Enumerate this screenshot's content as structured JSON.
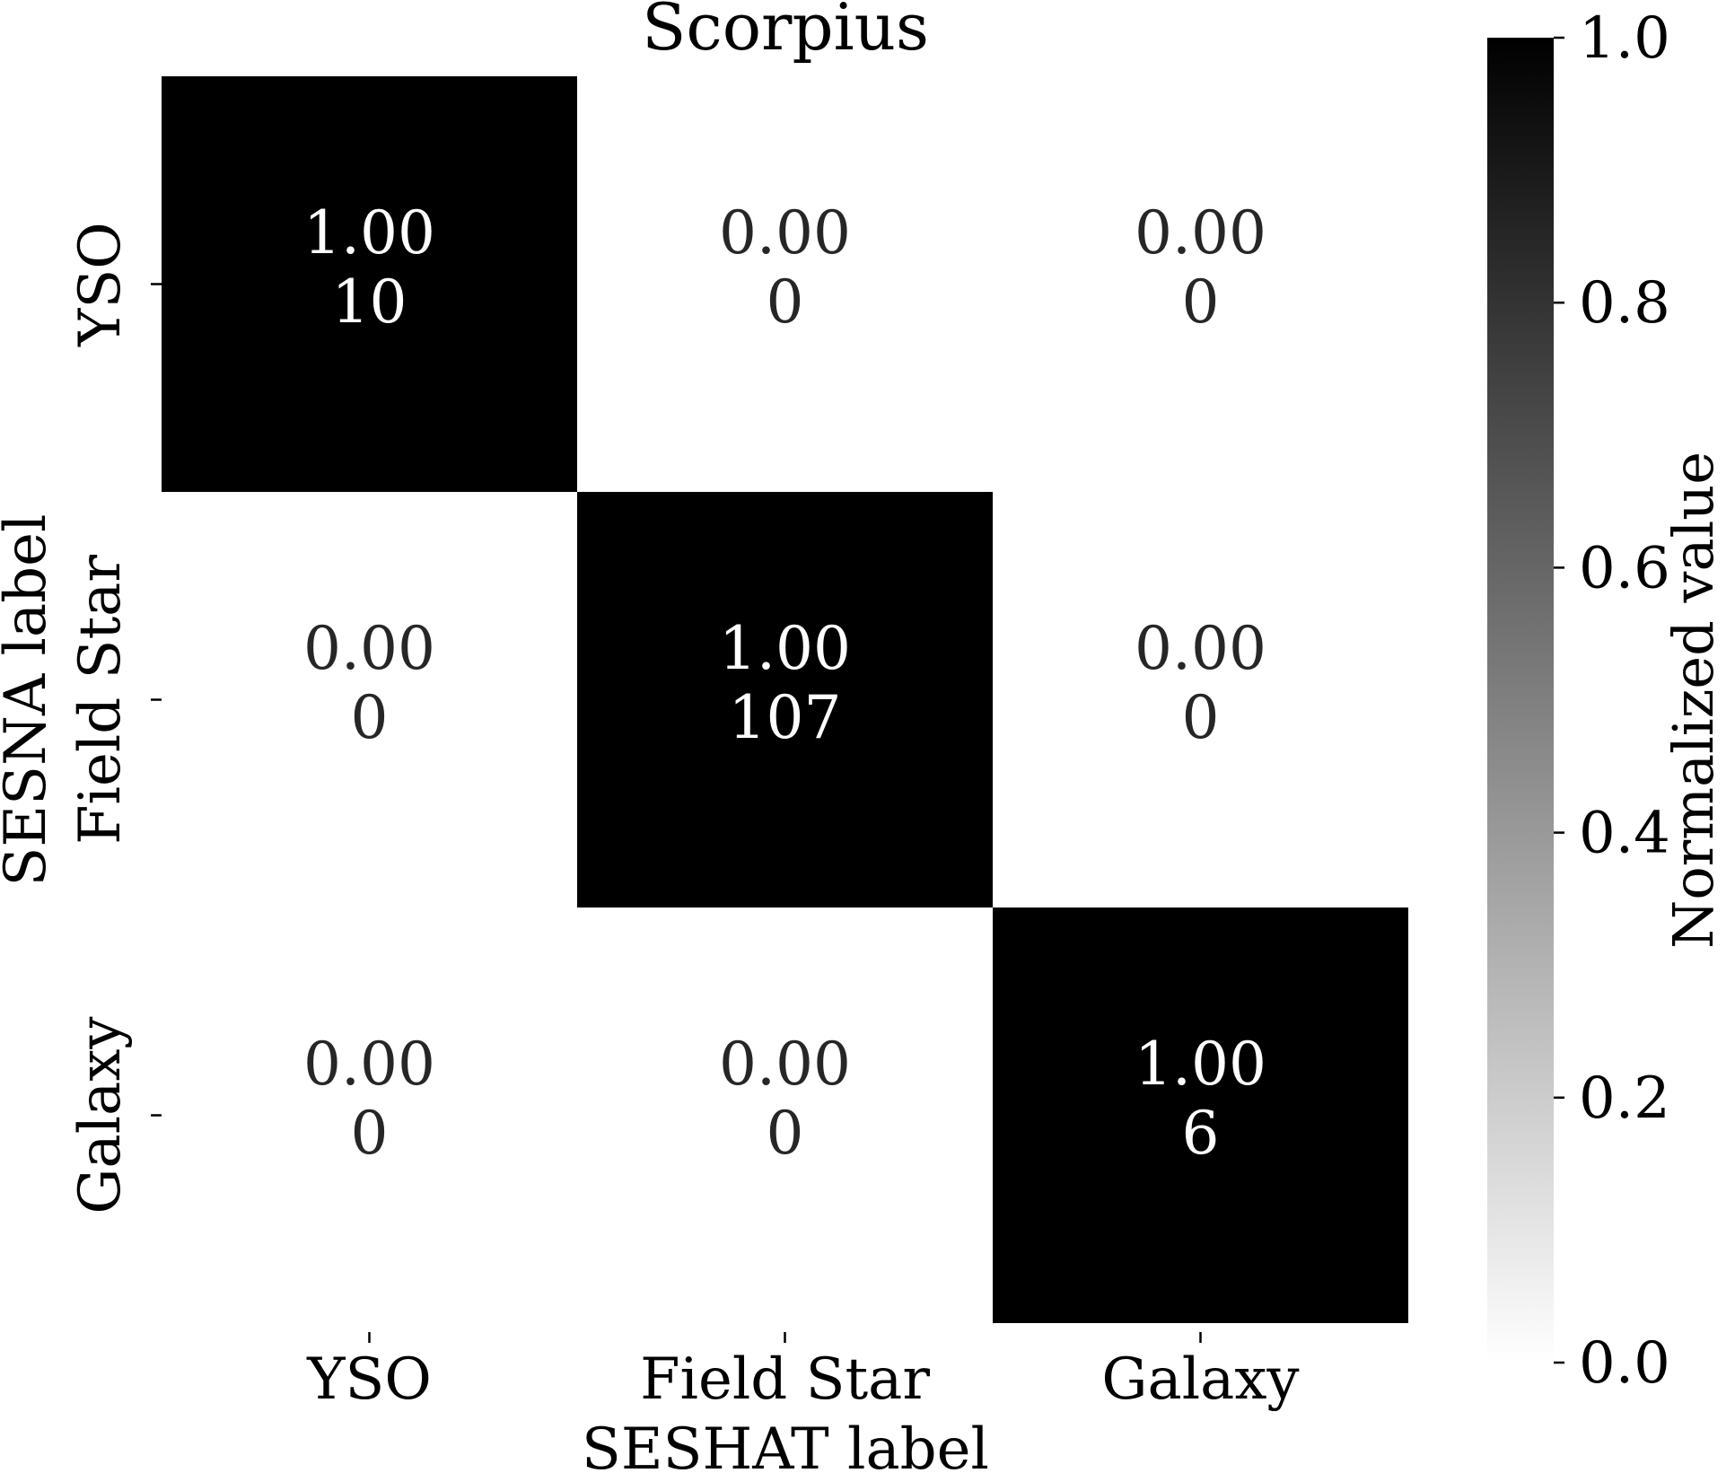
{
  "chart_data": {
    "type": "heatmap",
    "title": "Scorpius",
    "xlabel": "SESHAT label",
    "ylabel": "SESNA label",
    "x_categories": [
      "YSO",
      "Field Star",
      "Galaxy"
    ],
    "y_categories": [
      "YSO",
      "Field Star",
      "Galaxy"
    ],
    "cells": [
      [
        {
          "value": "1.00",
          "count": "10"
        },
        {
          "value": "0.00",
          "count": "0"
        },
        {
          "value": "0.00",
          "count": "0"
        }
      ],
      [
        {
          "value": "0.00",
          "count": "0"
        },
        {
          "value": "1.00",
          "count": "107"
        },
        {
          "value": "0.00",
          "count": "0"
        }
      ],
      [
        {
          "value": "0.00",
          "count": "0"
        },
        {
          "value": "0.00",
          "count": "0"
        },
        {
          "value": "1.00",
          "count": "6"
        }
      ]
    ],
    "colorbar": {
      "label": "Normalized value",
      "range": [
        0,
        1
      ],
      "ticks": [
        "0.0",
        "0.2",
        "0.4",
        "0.6",
        "0.8",
        "1.0"
      ],
      "colors": {
        "low": "#ffffff",
        "high": "#000000"
      }
    }
  }
}
